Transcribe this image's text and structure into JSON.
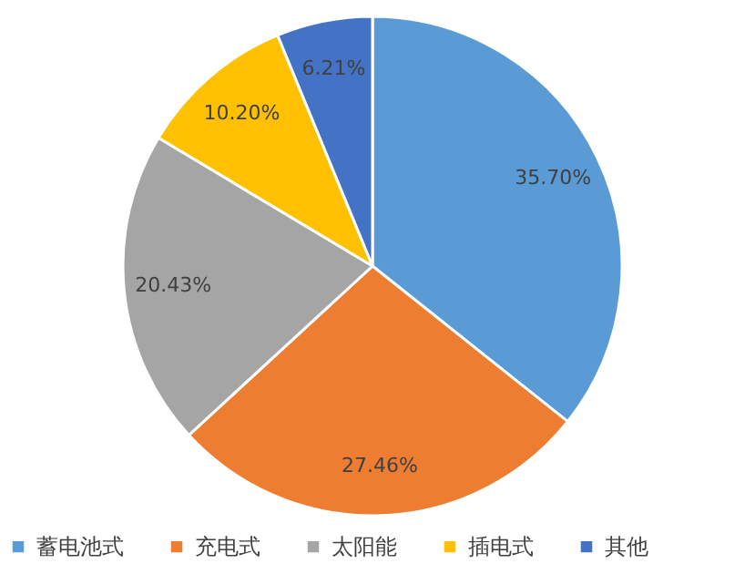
{
  "chart_data": {
    "type": "pie",
    "categories": [
      "蓄电池式",
      "充电式",
      "太阳能",
      "插电式",
      "其他"
    ],
    "values": [
      35.7,
      27.46,
      20.43,
      10.2,
      6.21
    ],
    "colors": [
      "#5b9bd5",
      "#ed7d31",
      "#a5a5a5",
      "#ffc000",
      "#4472c4"
    ],
    "value_labels": [
      "35.70%",
      "27.46%",
      "20.43%",
      "10.20%",
      "6.21%"
    ],
    "legend": "bottom"
  }
}
